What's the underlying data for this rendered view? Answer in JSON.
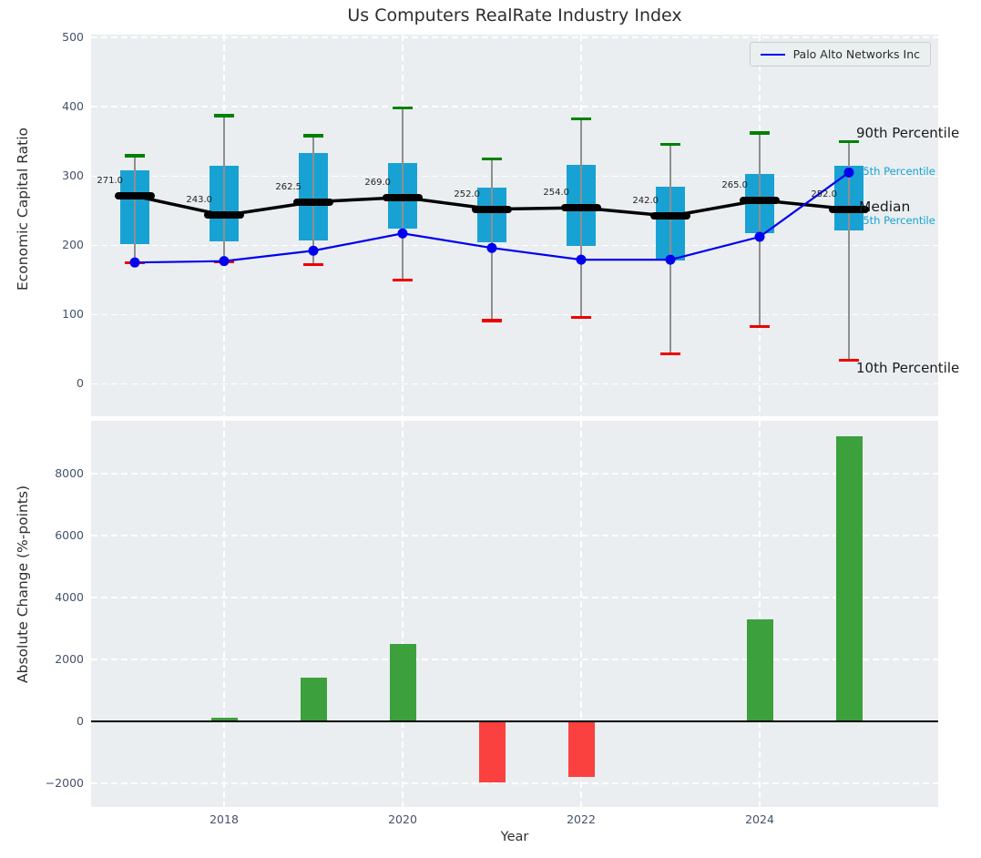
{
  "title": "Us Computers RealRate Industry Index",
  "legend": {
    "label": "Palo Alto Networks Inc",
    "line_color": "#0000ee"
  },
  "annotations": {
    "p90": {
      "text": "90th Percentile",
      "color": "#1a1a1a"
    },
    "p75": {
      "text": "75th Percentile",
      "color": "#17a3d3"
    },
    "median": {
      "text": "Median",
      "color": "#1a1a1a"
    },
    "p25": {
      "text": "25th Percentile",
      "color": "#17a3d3"
    },
    "p10": {
      "text": "10th Percentile",
      "color": "#1a1a1a"
    }
  },
  "colors": {
    "box_fill": "#18a2d4",
    "whisker": "#8f8f8f",
    "cap_top": "#008000",
    "cap_bottom": "#ee0000",
    "median_line": "#000000",
    "company_line": "#0000ee",
    "bar_positive": "#3ca03c",
    "bar_negative": "#fb4040",
    "plot_background": "#eaeef0"
  },
  "chart_data": [
    {
      "type": "boxplot",
      "title": "Us Computers RealRate Industry Index",
      "ylabel": "Economic Capital Ratio",
      "ylim": [
        -47,
        504
      ],
      "yticks": [
        0,
        100,
        200,
        300,
        400,
        500
      ],
      "xtick_years": [
        2018,
        2020,
        2022,
        2024
      ],
      "grid": "white-dashed",
      "legend_position": "upper right",
      "years": [
        2017,
        2018,
        2019,
        2020,
        2021,
        2022,
        2023,
        2024,
        2025
      ],
      "median": [
        271.0,
        243.0,
        262.5,
        269.0,
        252.0,
        254.0,
        242.0,
        265.0,
        252.0
      ],
      "p90": [
        329,
        387,
        358,
        398,
        325,
        382,
        345,
        362,
        349
      ],
      "p75": [
        308,
        314,
        333,
        318,
        283,
        316,
        284,
        303,
        314
      ],
      "p25": [
        201,
        205,
        207,
        224,
        204,
        199,
        178,
        217,
        221
      ],
      "p10": [
        175,
        176,
        172,
        150,
        91,
        96,
        43,
        83,
        34
      ],
      "series": [
        {
          "name": "Palo Alto Networks Inc",
          "values": [
            175,
            177,
            192,
            217,
            196,
            179,
            179,
            212,
            305
          ]
        }
      ]
    },
    {
      "type": "bar",
      "ylabel": "Absolute Change (%-points)",
      "xlabel": "Year",
      "ylim": [
        -2765,
        9706
      ],
      "yticks": [
        -2000,
        0,
        2000,
        4000,
        6000,
        8000
      ],
      "xtick_years": [
        2018,
        2020,
        2022,
        2024
      ],
      "grid": "white-dashed",
      "categories": [
        2017,
        2018,
        2019,
        2020,
        2021,
        2022,
        2023,
        2024,
        2025
      ],
      "values": [
        null,
        120,
        1400,
        2500,
        -1980,
        -1800,
        0,
        3300,
        9200
      ]
    }
  ]
}
